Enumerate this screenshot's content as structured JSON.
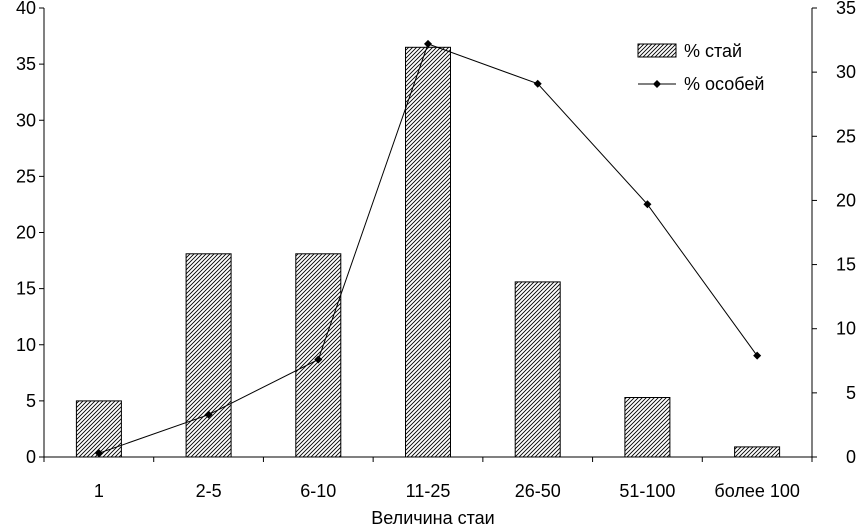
{
  "chart_data": {
    "type": "bar",
    "categories": [
      "1",
      "2-5",
      "6-10",
      "11-25",
      "26-50",
      "51-100",
      "более 100"
    ],
    "xlabel": "Величина стаи",
    "ylabel": "",
    "y2label": "",
    "ylim": [
      0,
      40
    ],
    "y2lim": [
      0,
      35
    ],
    "yticks": [
      "0",
      "5",
      "10",
      "15",
      "20",
      "25",
      "30",
      "35",
      "40"
    ],
    "y2ticks": [
      "0",
      "5",
      "10",
      "15",
      "20",
      "25",
      "30",
      "35"
    ],
    "grid": false,
    "legend": "top-right",
    "series": [
      {
        "name": "% стай",
        "type": "bar",
        "axis": "left",
        "pattern": "diagonal-hatch",
        "values": [
          5.0,
          18.1,
          18.1,
          36.5,
          15.6,
          5.3,
          0.9
        ]
      },
      {
        "name": "% особей",
        "type": "line",
        "axis": "right",
        "marker": "diamond",
        "values": [
          0.3,
          3.3,
          7.6,
          32.2,
          29.1,
          19.7,
          7.9
        ]
      }
    ]
  }
}
